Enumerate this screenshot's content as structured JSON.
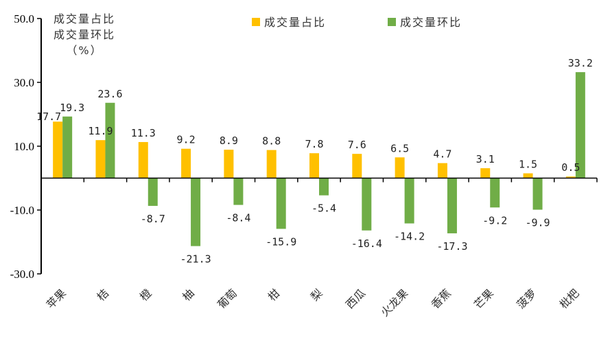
{
  "chart_data": {
    "type": "bar",
    "title": "",
    "ylabel_lines": [
      "成交量占比",
      "成交量环比",
      "（%）"
    ],
    "ylim": [
      -30,
      50
    ],
    "yticks": [
      "50.0",
      "30.0",
      "10.0",
      "-10.0",
      "-30.0"
    ],
    "ytick_values": [
      50,
      30,
      10,
      -10,
      -30
    ],
    "legend_position": "top",
    "categories": [
      "苹果",
      "桔",
      "橙",
      "柚",
      "葡萄",
      "柑",
      "梨",
      "西瓜",
      "火龙果",
      "香蕉",
      "芒果",
      "菠萝",
      "枇杷"
    ],
    "series": [
      {
        "name": "成交量占比",
        "color": "#FFC000",
        "values": [
          17.7,
          11.9,
          11.3,
          9.2,
          8.9,
          8.8,
          7.8,
          7.6,
          6.5,
          4.7,
          3.1,
          1.5,
          0.5
        ]
      },
      {
        "name": "成交量环比",
        "color": "#70AD47",
        "values": [
          19.3,
          23.6,
          -8.7,
          -21.3,
          -8.4,
          -15.9,
          -5.4,
          -16.4,
          -14.2,
          -17.3,
          -9.2,
          -9.9,
          33.2
        ]
      }
    ]
  }
}
